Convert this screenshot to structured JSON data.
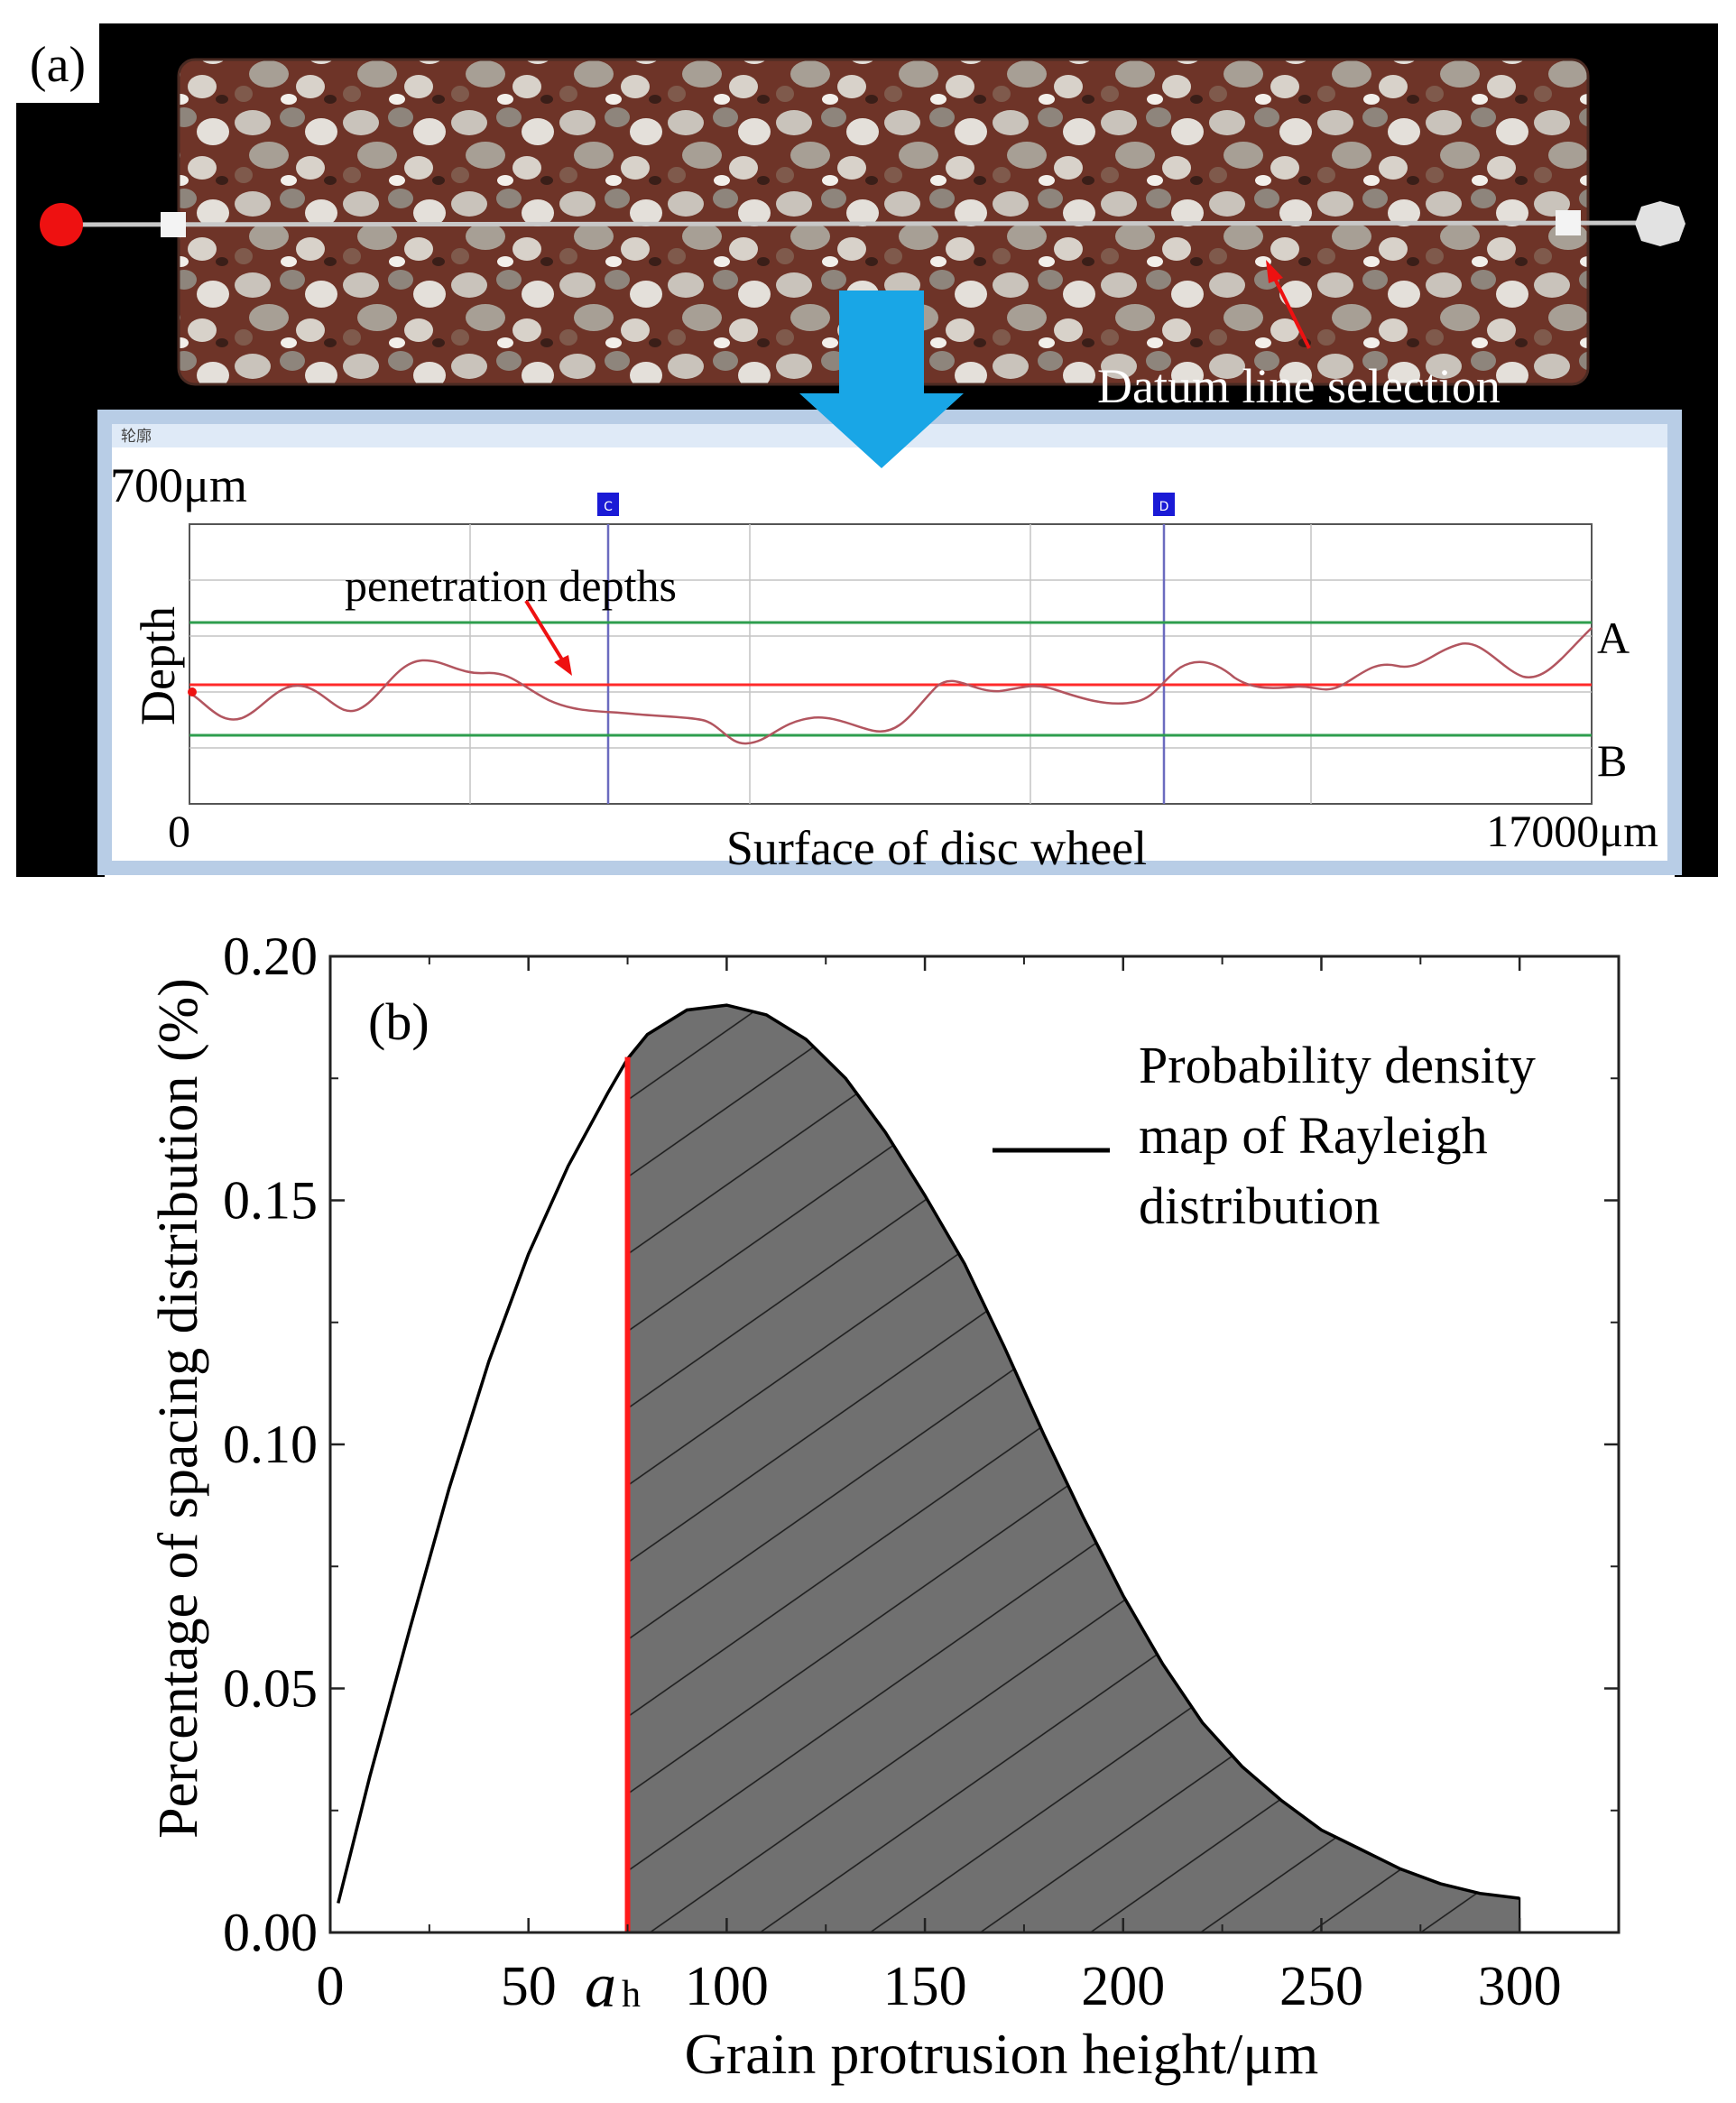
{
  "panel_a": {
    "label": "(a)",
    "annotation_datum": "Datum line selection",
    "window_caption": "轮廓",
    "scale_top": "700μm",
    "marker_c": "C",
    "marker_d": "D",
    "ylabel": "Depth",
    "annotation_penetration": "penetration depths",
    "line_a_label": "A",
    "line_b_label": "B",
    "x_origin": "0",
    "x_end": "17000μm",
    "xlabel": "Surface of disc wheel",
    "colors": {
      "reference_green": "#2e9e4e",
      "profile": "#b2555f",
      "datum_red": "#ff2a2a",
      "marker_blue": "#1a1ad6",
      "arrow_blue": "#19a6e6"
    }
  },
  "chart_data": {
    "type": "area",
    "panel_label": "(b)",
    "xlabel": "Grain protrusion height/μm",
    "ylabel": "Percentage of spacing distribution (%)",
    "xlim": [
      0,
      325
    ],
    "ylim": [
      0,
      0.2
    ],
    "x_ticks": [
      "0",
      "50",
      "100",
      "150",
      "200",
      "250",
      "300"
    ],
    "y_ticks": [
      "0.00",
      "0.05",
      "0.10",
      "0.15",
      "0.20"
    ],
    "threshold_label": "a",
    "threshold_subscript": "h",
    "threshold_x": 75,
    "legend": "Probability density map of Rayleigh distribution",
    "legend_lines": [
      "Probability density",
      "map of Rayleigh",
      "distribution"
    ],
    "legend_position": "top-right",
    "series": [
      {
        "name": "Probability density map of Rayleigh distribution",
        "x": [
          2,
          10,
          20,
          30,
          40,
          50,
          60,
          70,
          75,
          80,
          90,
          100,
          110,
          120,
          130,
          140,
          150,
          160,
          170,
          180,
          190,
          200,
          210,
          220,
          230,
          240,
          250,
          260,
          270,
          280,
          290,
          300
        ],
        "y": [
          0.006,
          0.032,
          0.062,
          0.091,
          0.117,
          0.139,
          0.157,
          0.172,
          0.179,
          0.184,
          0.189,
          0.19,
          0.188,
          0.183,
          0.175,
          0.164,
          0.151,
          0.137,
          0.12,
          0.102,
          0.085,
          0.069,
          0.055,
          0.043,
          0.034,
          0.027,
          0.021,
          0.017,
          0.013,
          0.01,
          0.008,
          0.007
        ]
      }
    ],
    "colors": {
      "curve": "#000000",
      "shaded": "#6e6e6e",
      "threshold": "#ff1a1a"
    }
  }
}
